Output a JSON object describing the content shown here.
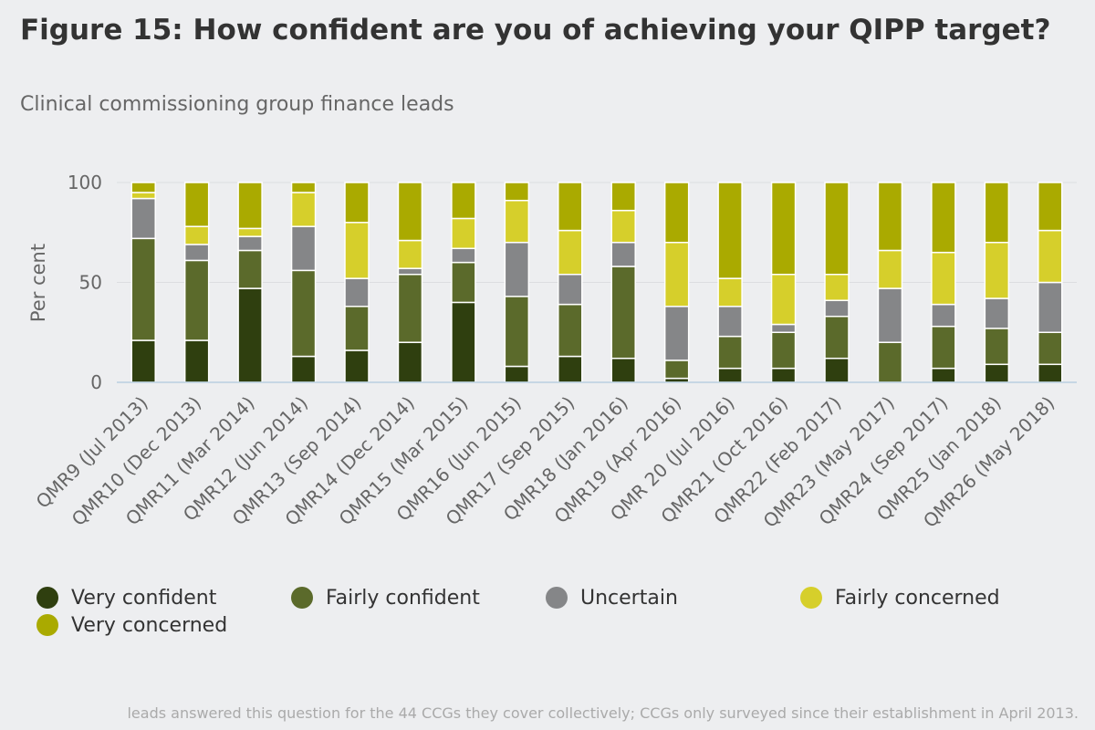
{
  "title": "Figure 15: How confident are you of achieving your QIPP target?",
  "subtitle": "Clinical commissioning group finance leads",
  "footnote": "leads answered this question for the 44 CCGs they cover collectively; CCGs only surveyed since their establishment in April 2013.",
  "chart_data": {
    "type": "bar",
    "stacked": true,
    "title": "Figure 15: How confident are you of achieving your QIPP target?",
    "ylabel": "Per cent",
    "xlabel": "",
    "ylim": [
      0,
      100
    ],
    "yticks": [
      0,
      50,
      100
    ],
    "grid": true,
    "legend_position": "bottom",
    "categories": [
      "QMR9 (Jul 2013)",
      "QMR10 (Dec 2013)",
      "QMR11 (Mar 2014)",
      "QMR12 (Jun 2014)",
      "QMR13 (Sep 2014)",
      "QMR14 (Dec 2014)",
      "QMR15 (Mar 2015)",
      "QMR16 (Jun 2015)",
      "QMR17 (Sep 2015)",
      "QMR18 (Jan 2016)",
      "QMR19 (Apr 2016)",
      "QMR 20 (Jul 2016)",
      "QMR21 (Oct 2016)",
      "QMR22 (Feb 2017)",
      "QMR23 (May 2017)",
      "QMR24 (Sep 2017)",
      "QMR25 (Jan 2018)",
      "QMR26 (May 2018)"
    ],
    "series": [
      {
        "name": "Very confident",
        "color": "#2f3f0f",
        "values": [
          21,
          21,
          47,
          13,
          16,
          20,
          40,
          8,
          13,
          12,
          2,
          7,
          7,
          12,
          0,
          7,
          9,
          9
        ]
      },
      {
        "name": "Fairly confident",
        "color": "#5b6a2b",
        "values": [
          51,
          40,
          19,
          43,
          22,
          34,
          20,
          35,
          26,
          46,
          9,
          16,
          18,
          21,
          20,
          21,
          18,
          16
        ]
      },
      {
        "name": "Uncertain",
        "color": "#858688",
        "values": [
          20,
          8,
          7,
          22,
          14,
          3,
          7,
          27,
          15,
          12,
          27,
          15,
          4,
          8,
          27,
          11,
          15,
          25
        ]
      },
      {
        "name": "Fairly concerned",
        "color": "#d6cf2b",
        "values": [
          3,
          9,
          4,
          17,
          28,
          14,
          15,
          21,
          22,
          16,
          32,
          14,
          25,
          13,
          19,
          26,
          28,
          26
        ]
      },
      {
        "name": "Very concerned",
        "color": "#aaaa00",
        "values": [
          5,
          22,
          23,
          5,
          20,
          29,
          18,
          9,
          24,
          14,
          30,
          48,
          46,
          46,
          34,
          35,
          30,
          24
        ]
      }
    ]
  }
}
